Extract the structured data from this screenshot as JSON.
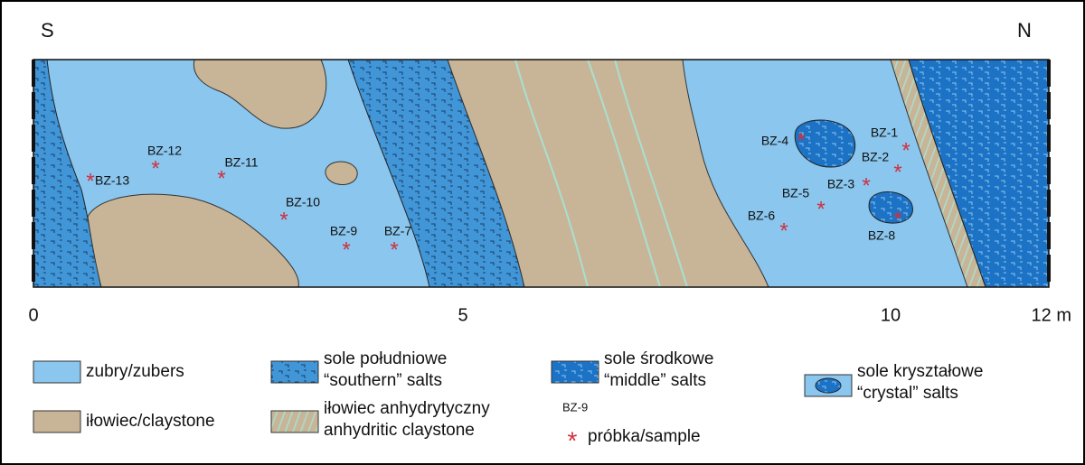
{
  "header": {
    "left": "S",
    "right": "N"
  },
  "samples": [
    {
      "label": "BZ-13"
    },
    {
      "label": "BZ-12"
    },
    {
      "label": "BZ-11"
    },
    {
      "label": "BZ-10"
    },
    {
      "label": "BZ-9"
    },
    {
      "label": "BZ-7"
    },
    {
      "label": "BZ-6"
    },
    {
      "label": "BZ-5"
    },
    {
      "label": "BZ-4"
    },
    {
      "label": "BZ-3"
    },
    {
      "label": "BZ-2"
    },
    {
      "label": "BZ-1"
    },
    {
      "label": "BZ-8"
    }
  ],
  "scale": [
    "0",
    "5",
    "10",
    "12 m"
  ],
  "legend": [
    {
      "lines": [
        "zubry/zubers"
      ]
    },
    {
      "lines": [
        "sole południowe",
        "“southern” salts"
      ]
    },
    {
      "lines": [
        "sole środkowe",
        "“middle” salts"
      ]
    },
    {
      "lines": [
        "sole kryształowe",
        "“crystal” salts"
      ]
    },
    {
      "lines": [
        "iłowiec/claystone"
      ]
    },
    {
      "lines": [
        "iłowiec anhydrytyczny",
        "anhydritic claystone"
      ]
    }
  ],
  "sample_key": {
    "label": "BZ-9",
    "text": "próbka/sample"
  }
}
